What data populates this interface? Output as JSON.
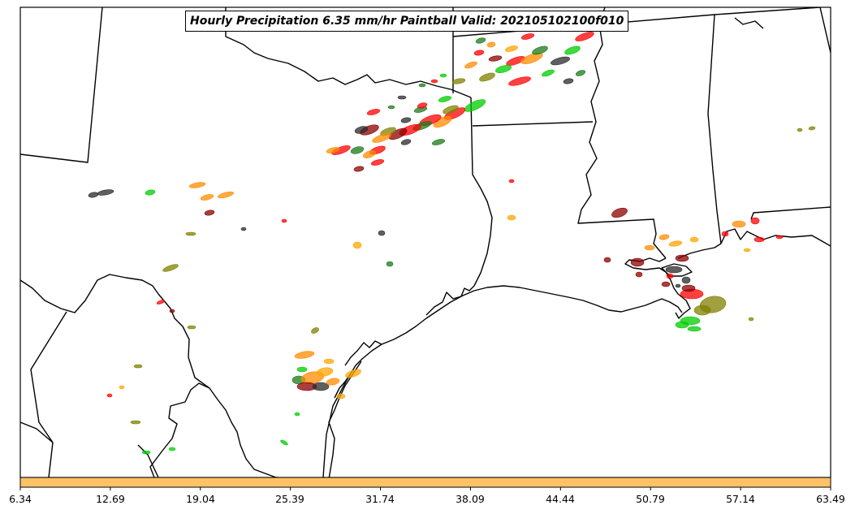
{
  "title": "Hourly Precipitation 6.35 mm/hr Paintball Valid: 202105102100f010",
  "colorbar": {
    "fill_color": "#ffc266",
    "ticks": [
      "6.34",
      "12.69",
      "19.04",
      "25.39",
      "31.74",
      "38.09",
      "44.44",
      "50.79",
      "57.14",
      "63.49"
    ]
  },
  "paintball_colors": [
    "#ff0000",
    "#00cc00",
    "#1a7a1a",
    "#ff8c00",
    "#ffa500",
    "#808000",
    "#8b0000",
    "#2a2a2a"
  ]
}
